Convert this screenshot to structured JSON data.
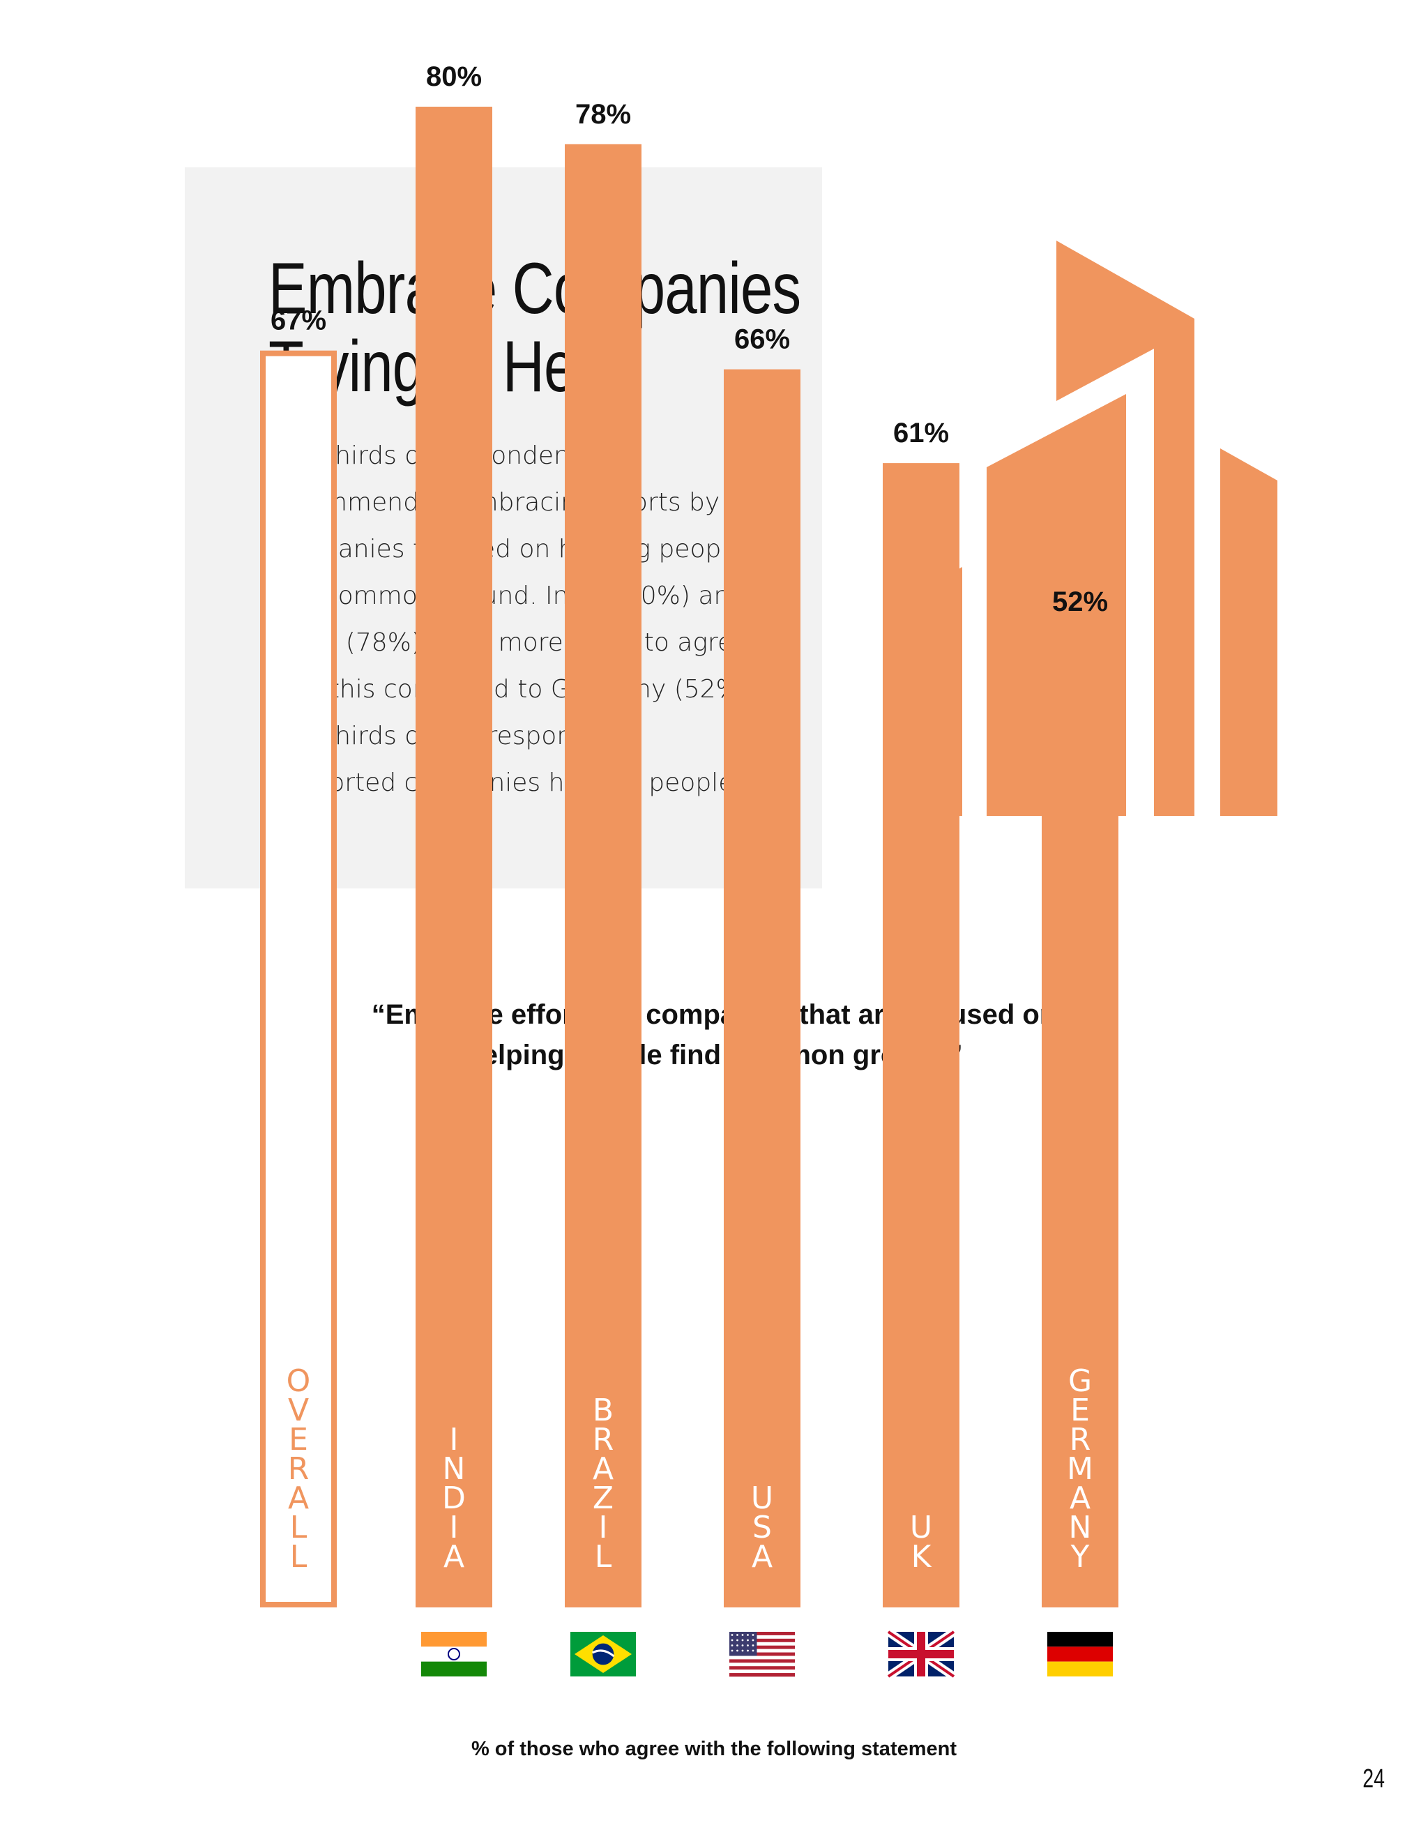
{
  "page": {
    "heading_lines": [
      "Embrace Companies",
      "Trying to Help"
    ],
    "intro_lines": [
      "Two-thirds of respondents",
      "recommended embracing efforts by",
      "companies focused on helping people",
      "find common ground. India (80%) and",
      "Brazil (78%) were more likely to agree",
      "with this compared to Germany (52%).",
      "Two-thirds of U.S respondents",
      "supported companies helping people."
    ],
    "page_number": "24",
    "accent_color": "#f0955e",
    "logo_icon": "building-icon"
  },
  "chart_data": {
    "type": "bar",
    "title_lines": [
      "“Embrace efforts by companies that are focused on",
      "helping people find common ground”"
    ],
    "caption": "% of those who agree with the following statement",
    "categories": [
      "OVERALL",
      "INDIA",
      "BRAZIL",
      "USA",
      "UK",
      "GERMANY"
    ],
    "values": [
      67,
      80,
      78,
      66,
      61,
      52
    ],
    "value_labels": [
      "67%",
      "80%",
      "78%",
      "66%",
      "61%",
      "52%"
    ],
    "flags": [
      "",
      "india-flag-icon",
      "brazil-flag-icon",
      "usa-flag-icon",
      "uk-flag-icon",
      "germany-flag-icon"
    ],
    "highlighted": "OVERALL",
    "bar_color": "#f0955e",
    "grid": false,
    "ylim": [
      0,
      100
    ]
  }
}
